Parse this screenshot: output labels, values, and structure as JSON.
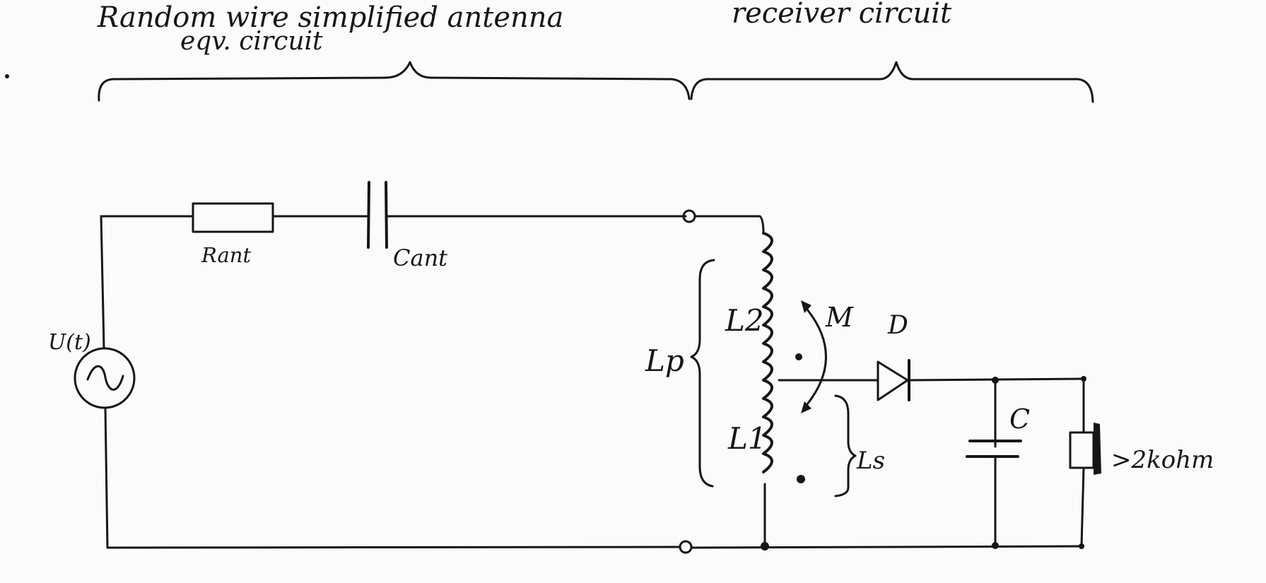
{
  "labels": {
    "antenna_title_line1": "Random wire simplified antenna",
    "antenna_title_line2": "eqv. circuit",
    "receiver_title": "receiver circuit",
    "resistor": "Rant",
    "capacitor_ant": "Cant",
    "source": "U(t)",
    "lp": "Lp",
    "l2": "L2",
    "l1": "L1",
    "ls": "Ls",
    "mutual": "M",
    "diode": "D",
    "capacitor": "C",
    "load": ">2kohm"
  },
  "colors": {
    "ink": "#161616",
    "paper": "#fbfbf9"
  }
}
